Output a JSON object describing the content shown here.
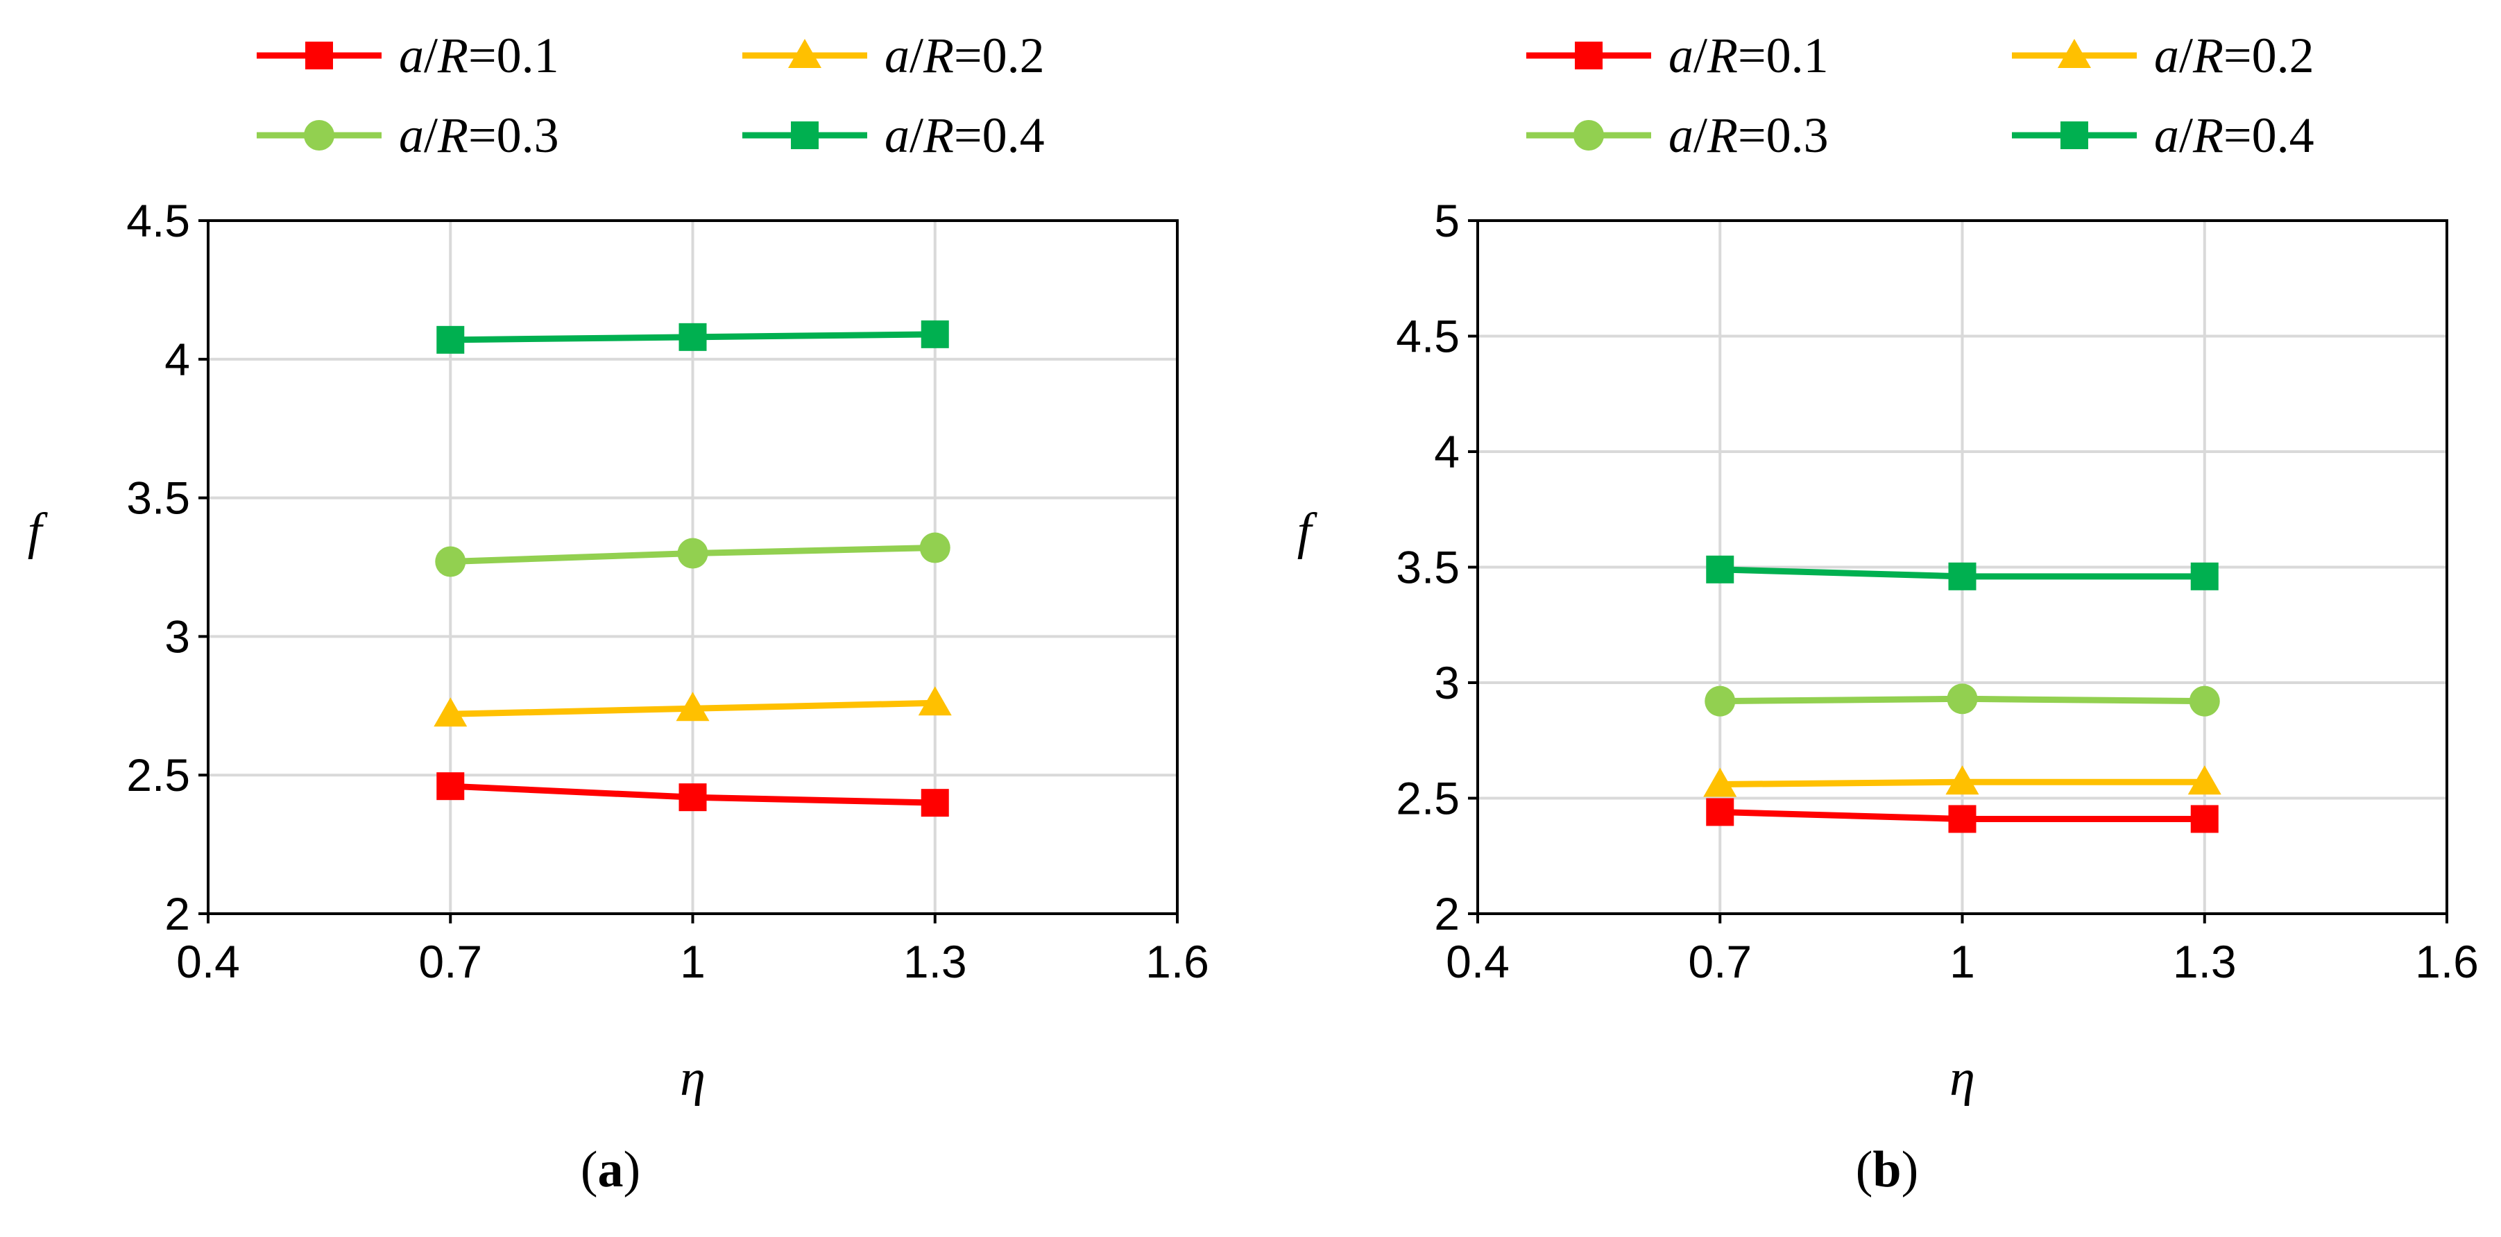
{
  "chart_data": [
    {
      "type": "line",
      "caption": "(a)",
      "caption_letter": "a",
      "xlabel": "η",
      "ylabel": "f",
      "xlim": [
        0.4,
        1.6
      ],
      "ylim": [
        2,
        4.5
      ],
      "xticks": [
        0.4,
        0.7,
        1,
        1.3,
        1.6
      ],
      "xtick_labels": [
        "0.4",
        "0.7",
        "1",
        "1.3",
        "1.6"
      ],
      "yticks": [
        2,
        2.5,
        3,
        3.5,
        4,
        4.5
      ],
      "ytick_labels": [
        "2",
        "2.5",
        "3",
        "3.5",
        "4",
        "4.5"
      ],
      "grid": true,
      "legend_position": "top",
      "x": [
        0.7,
        1,
        1.3
      ],
      "series": [
        {
          "name": "a/R=0.1",
          "label_var": "a",
          "label_sep": "/",
          "label_var2": "R",
          "label_val": "=0.1",
          "color": "#ff0000",
          "marker": "square",
          "values": [
            2.46,
            2.42,
            2.4
          ]
        },
        {
          "name": "a/R=0.2",
          "label_var": "a",
          "label_sep": "/",
          "label_var2": "R",
          "label_val": "=0.2",
          "color": "#ffc000",
          "marker": "triangle",
          "values": [
            2.72,
            2.74,
            2.76
          ]
        },
        {
          "name": "a/R=0.3",
          "label_var": "a",
          "label_sep": "/",
          "label_var2": "R",
          "label_val": "=0.3",
          "color": "#92d050",
          "marker": "circle",
          "values": [
            3.27,
            3.3,
            3.32
          ]
        },
        {
          "name": "a/R=0.4",
          "label_var": "a",
          "label_sep": "/",
          "label_var2": "R",
          "label_val": "=0.4",
          "color": "#00b050",
          "marker": "square",
          "values": [
            4.07,
            4.08,
            4.09
          ]
        }
      ]
    },
    {
      "type": "line",
      "caption": "(b)",
      "caption_letter": "b",
      "xlabel": "η",
      "ylabel": "f",
      "xlim": [
        0.4,
        1.6
      ],
      "ylim": [
        2,
        5
      ],
      "xticks": [
        0.4,
        0.7,
        1,
        1.3,
        1.6
      ],
      "xtick_labels": [
        "0.4",
        "0.7",
        "1",
        "1.3",
        "1.6"
      ],
      "yticks": [
        2,
        2.5,
        3,
        3.5,
        4,
        4.5,
        5
      ],
      "ytick_labels": [
        "2",
        "2.5",
        "3",
        "3.5",
        "4",
        "4.5",
        "5"
      ],
      "grid": true,
      "legend_position": "top",
      "x": [
        0.7,
        1,
        1.3
      ],
      "series": [
        {
          "name": "a/R=0.1",
          "label_var": "a",
          "label_sep": "/",
          "label_var2": "R",
          "label_val": "=0.1",
          "color": "#ff0000",
          "marker": "square",
          "values": [
            2.44,
            2.41,
            2.41
          ]
        },
        {
          "name": "a/R=0.2",
          "label_var": "a",
          "label_sep": "/",
          "label_var2": "R",
          "label_val": "=0.2",
          "color": "#ffc000",
          "marker": "triangle",
          "values": [
            2.56,
            2.57,
            2.57
          ]
        },
        {
          "name": "a/R=0.3",
          "label_var": "a",
          "label_sep": "/",
          "label_var2": "R",
          "label_val": "=0.3",
          "color": "#92d050",
          "marker": "circle",
          "values": [
            2.92,
            2.93,
            2.92
          ]
        },
        {
          "name": "a/R=0.4",
          "label_var": "a",
          "label_sep": "/",
          "label_var2": "R",
          "label_val": "=0.4",
          "color": "#00b050",
          "marker": "square",
          "values": [
            3.49,
            3.46,
            3.46
          ]
        }
      ]
    }
  ]
}
